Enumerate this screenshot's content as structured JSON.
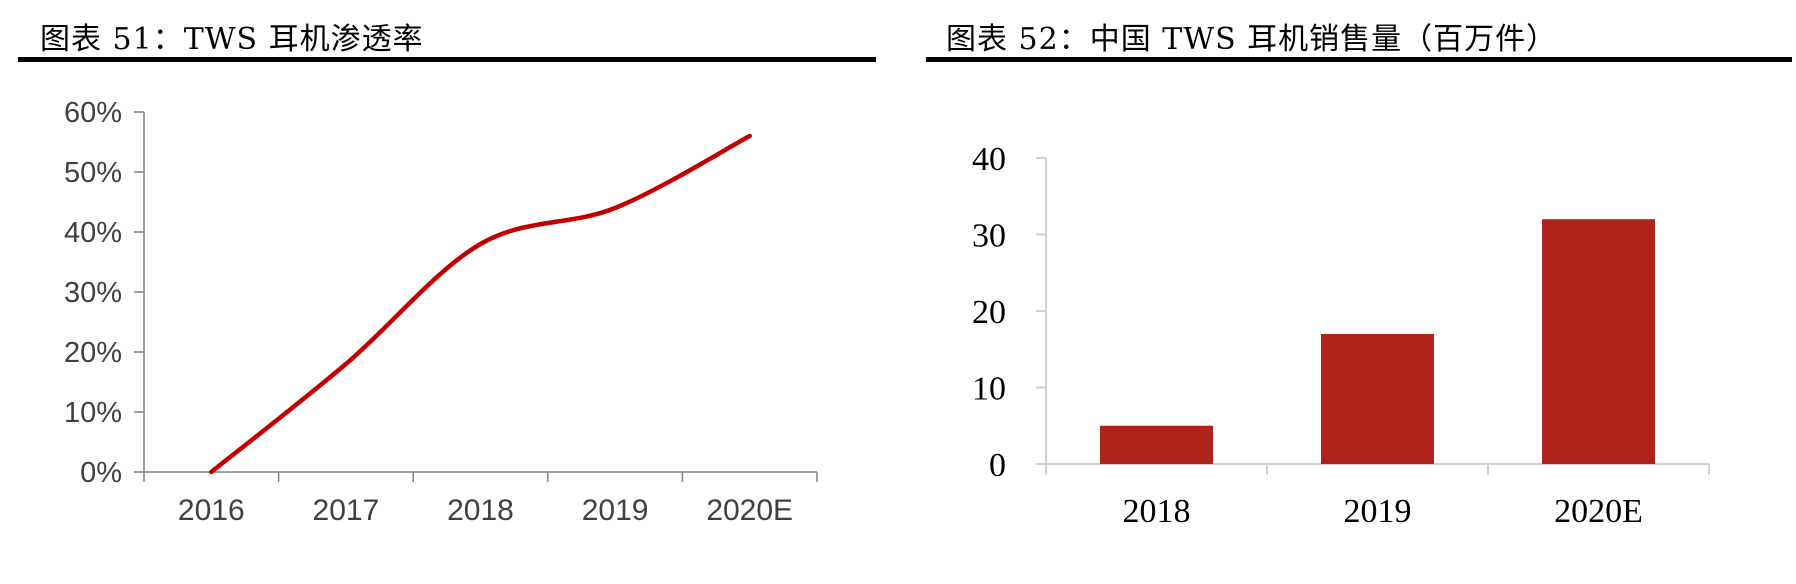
{
  "figures": [
    {
      "title": "图表 51：TWS 耳机渗透率"
    },
    {
      "title": "图表 52：中国 TWS 耳机销售量（百万件）"
    }
  ],
  "colors": {
    "line": "#c00000",
    "bar": "#b0231b",
    "axis_left": "#808080",
    "axis_right": "#d0d0d0",
    "title_rule": "#000000"
  },
  "chart_data": [
    {
      "type": "line",
      "title": "图表 51：TWS 耳机渗透率",
      "xlabel": "",
      "ylabel": "",
      "categories": [
        "2016",
        "2017",
        "2018",
        "2019",
        "2020E"
      ],
      "series": [
        {
          "name": "TWS 耳机渗透率",
          "values": [
            0,
            18,
            38,
            44,
            56
          ]
        }
      ],
      "y_ticks": [
        "0%",
        "10%",
        "20%",
        "30%",
        "40%",
        "50%",
        "60%"
      ],
      "ylim": [
        0,
        60
      ],
      "y_unit": "%",
      "smooth": true,
      "grid": false,
      "legend": "none"
    },
    {
      "type": "bar",
      "title": "图表 52：中国 TWS 耳机销售量（百万件）",
      "xlabel": "",
      "ylabel": "",
      "categories": [
        "2018",
        "2019",
        "2020E"
      ],
      "values": [
        5,
        17,
        32
      ],
      "y_ticks": [
        "0",
        "10",
        "20",
        "30",
        "40"
      ],
      "ylim": [
        0,
        40
      ],
      "y_unit": "百万件",
      "grid": false,
      "legend": "none"
    }
  ]
}
